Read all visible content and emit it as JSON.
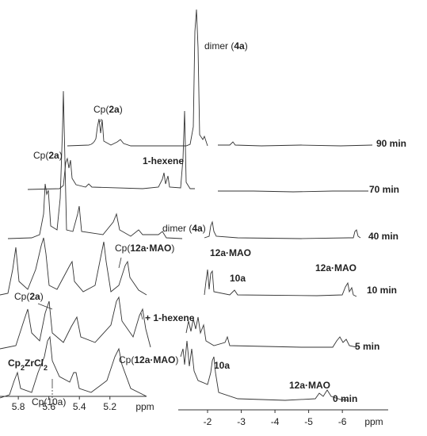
{
  "chart_data": [
    {
      "type": "nmr-spectrum-stack",
      "xlabel": "ppm",
      "xlim": [
        5.92,
        4.96
      ],
      "xticks": [
        5.8,
        5.6,
        5.4,
        5.2
      ],
      "annotations": [
        [
          {
            "t": "Cp("
          },
          {
            "t": "2a",
            "bold": true
          },
          {
            "t": ")"
          }
        ],
        [
          {
            "t": "dimer ("
          },
          {
            "t": "4a",
            "bold": true
          },
          {
            "t": ")"
          }
        ],
        [
          {
            "t": "Cp("
          },
          {
            "t": "2a",
            "bold": true
          },
          {
            "t": ")"
          }
        ],
        [
          {
            "t": "1-hexene",
            "bold": true
          }
        ],
        [
          {
            "t": "dimer ("
          },
          {
            "t": "4a",
            "bold": true
          },
          {
            "t": ")"
          }
        ],
        [
          {
            "t": "Cp("
          },
          {
            "t": "12a·MAO",
            "bold": true
          },
          {
            "t": ")"
          }
        ],
        [
          {
            "t": "Cp("
          },
          {
            "t": "2a",
            "bold": true
          },
          {
            "t": ")"
          }
        ],
        [
          {
            "t": "+ 1-hexene",
            "bold": true
          }
        ],
        [
          {
            "t": "Cp",
            "bold": true
          },
          {
            "t": "2",
            "bold": true,
            "sub": true
          },
          {
            "t": "ZrCl",
            "bold": true
          },
          {
            "t": "2",
            "bold": true,
            "sub": true
          }
        ],
        [
          {
            "t": "Cp("
          },
          {
            "t": "12a·MAO",
            "bold": true
          },
          {
            "t": ")"
          }
        ],
        [
          {
            "t": "Cp(10a)"
          }
        ]
      ]
    },
    {
      "type": "nmr-spectrum-stack",
      "xlabel": "ppm",
      "xlim": [
        -1.13,
        -7.36
      ],
      "xticks": [
        -2,
        -3,
        -4,
        -5,
        -6
      ],
      "trace_labels": [
        "90 min",
        "70 min",
        "40 min",
        "10 min",
        "5 min",
        "0 min"
      ],
      "annotations": [
        [
          {
            "t": "12a·MAO",
            "bold": true
          }
        ],
        [
          {
            "t": "10a",
            "bold": true
          }
        ],
        [
          {
            "t": "12a·MAO",
            "bold": true
          }
        ],
        [
          {
            "t": "10a",
            "bold": true
          }
        ],
        [
          {
            "t": "12a·MAO",
            "bold": true
          }
        ]
      ]
    }
  ]
}
